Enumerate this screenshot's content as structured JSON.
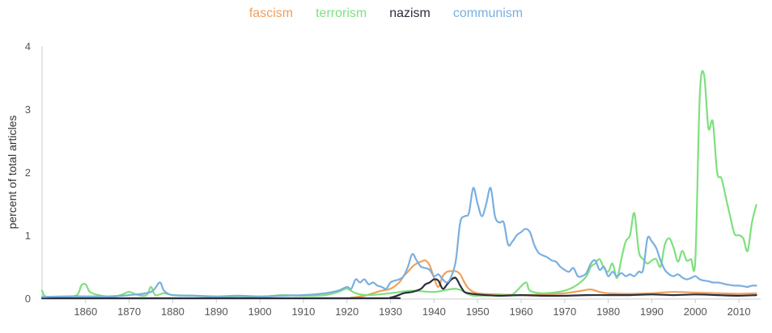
{
  "chart_data": {
    "type": "line",
    "title": "",
    "xlabel": "",
    "ylabel": "percent of total articles",
    "xlim": [
      1850,
      2015
    ],
    "ylim": [
      0,
      4
    ],
    "xticks": [
      1860,
      1870,
      1880,
      1890,
      1900,
      1910,
      1920,
      1930,
      1940,
      1950,
      1960,
      1970,
      1980,
      1990,
      2000,
      2010
    ],
    "yticks": [
      0,
      1,
      2,
      3,
      4
    ],
    "grid": false,
    "legend_position": "top-center",
    "series": [
      {
        "name": "fascism",
        "color": "#f0a05a",
        "points": [
          [
            1850,
            0
          ],
          [
            1918,
            0
          ],
          [
            1921,
            0.01
          ],
          [
            1924,
            0.04
          ],
          [
            1926,
            0.08
          ],
          [
            1928,
            0.12
          ],
          [
            1930,
            0.15
          ],
          [
            1932,
            0.25
          ],
          [
            1933,
            0.35
          ],
          [
            1934,
            0.42
          ],
          [
            1935,
            0.5
          ],
          [
            1936,
            0.55
          ],
          [
            1937,
            0.58
          ],
          [
            1938,
            0.6
          ],
          [
            1939,
            0.52
          ],
          [
            1940,
            0.32
          ],
          [
            1941,
            0.18
          ],
          [
            1942,
            0.35
          ],
          [
            1943,
            0.42
          ],
          [
            1944,
            0.43
          ],
          [
            1945,
            0.43
          ],
          [
            1946,
            0.38
          ],
          [
            1947,
            0.25
          ],
          [
            1948,
            0.15
          ],
          [
            1950,
            0.08
          ],
          [
            1955,
            0.06
          ],
          [
            1960,
            0.05
          ],
          [
            1965,
            0.06
          ],
          [
            1970,
            0.08
          ],
          [
            1974,
            0.12
          ],
          [
            1976,
            0.14
          ],
          [
            1978,
            0.1
          ],
          [
            1980,
            0.08
          ],
          [
            1985,
            0.07
          ],
          [
            1990,
            0.08
          ],
          [
            1995,
            0.1
          ],
          [
            2000,
            0.09
          ],
          [
            2005,
            0.08
          ],
          [
            2010,
            0.07
          ],
          [
            2014,
            0.08
          ]
        ]
      },
      {
        "name": "terrorism",
        "color": "#7ee07e",
        "points": [
          [
            1850,
            0.12
          ],
          [
            1851,
            0.02
          ],
          [
            1855,
            0.02
          ],
          [
            1858,
            0.05
          ],
          [
            1859,
            0.2
          ],
          [
            1860,
            0.22
          ],
          [
            1861,
            0.1
          ],
          [
            1863,
            0.05
          ],
          [
            1866,
            0.02
          ],
          [
            1868,
            0.05
          ],
          [
            1870,
            0.1
          ],
          [
            1872,
            0.05
          ],
          [
            1874,
            0.05
          ],
          [
            1875,
            0.18
          ],
          [
            1876,
            0.05
          ],
          [
            1878,
            0.08
          ],
          [
            1880,
            0.05
          ],
          [
            1885,
            0.04
          ],
          [
            1890,
            0.02
          ],
          [
            1895,
            0.03
          ],
          [
            1900,
            0.02
          ],
          [
            1905,
            0.05
          ],
          [
            1910,
            0.04
          ],
          [
            1915,
            0.05
          ],
          [
            1918,
            0.1
          ],
          [
            1920,
            0.15
          ],
          [
            1922,
            0.08
          ],
          [
            1925,
            0.05
          ],
          [
            1930,
            0.08
          ],
          [
            1935,
            0.12
          ],
          [
            1940,
            0.1
          ],
          [
            1945,
            0.15
          ],
          [
            1948,
            0.06
          ],
          [
            1950,
            0.04
          ],
          [
            1955,
            0.05
          ],
          [
            1958,
            0.06
          ],
          [
            1961,
            0.25
          ],
          [
            1962,
            0.12
          ],
          [
            1965,
            0.08
          ],
          [
            1970,
            0.12
          ],
          [
            1973,
            0.22
          ],
          [
            1975,
            0.35
          ],
          [
            1976,
            0.5
          ],
          [
            1977,
            0.55
          ],
          [
            1978,
            0.62
          ],
          [
            1979,
            0.48
          ],
          [
            1980,
            0.42
          ],
          [
            1981,
            0.55
          ],
          [
            1982,
            0.32
          ],
          [
            1983,
            0.62
          ],
          [
            1984,
            0.9
          ],
          [
            1985,
            1.0
          ],
          [
            1986,
            1.35
          ],
          [
            1987,
            0.75
          ],
          [
            1988,
            0.62
          ],
          [
            1989,
            0.55
          ],
          [
            1990,
            0.6
          ],
          [
            1991,
            0.62
          ],
          [
            1992,
            0.5
          ],
          [
            1993,
            0.85
          ],
          [
            1994,
            0.95
          ],
          [
            1995,
            0.8
          ],
          [
            1996,
            0.58
          ],
          [
            1997,
            0.75
          ],
          [
            1998,
            0.6
          ],
          [
            1999,
            0.62
          ],
          [
            2000,
            0.62
          ],
          [
            2001,
            3.2
          ],
          [
            2002,
            3.55
          ],
          [
            2003,
            2.7
          ],
          [
            2004,
            2.8
          ],
          [
            2005,
            2.0
          ],
          [
            2006,
            1.9
          ],
          [
            2007,
            1.6
          ],
          [
            2008,
            1.3
          ],
          [
            2009,
            1.02
          ],
          [
            2010,
            1.0
          ],
          [
            2011,
            0.95
          ],
          [
            2012,
            0.75
          ],
          [
            2013,
            1.2
          ],
          [
            2014,
            1.48
          ]
        ]
      },
      {
        "name": "nazism",
        "color": "#2a2e3a",
        "points": [
          [
            1850,
            0
          ],
          [
            1925,
            0
          ],
          [
            1930,
            0.01
          ],
          [
            1933,
            0.08
          ],
          [
            1935,
            0.1
          ],
          [
            1937,
            0.15
          ],
          [
            1938,
            0.22
          ],
          [
            1939,
            0.25
          ],
          [
            1940,
            0.3
          ],
          [
            1941,
            0.28
          ],
          [
            1942,
            0.15
          ],
          [
            1943,
            0.22
          ],
          [
            1944,
            0.3
          ],
          [
            1945,
            0.32
          ],
          [
            1946,
            0.2
          ],
          [
            1947,
            0.1
          ],
          [
            1948,
            0.08
          ],
          [
            1950,
            0.06
          ],
          [
            1955,
            0.04
          ],
          [
            1960,
            0.05
          ],
          [
            1965,
            0.04
          ],
          [
            1970,
            0.04
          ],
          [
            1975,
            0.05
          ],
          [
            1980,
            0.05
          ],
          [
            1985,
            0.05
          ],
          [
            1990,
            0.06
          ],
          [
            1995,
            0.05
          ],
          [
            2000,
            0.06
          ],
          [
            2005,
            0.05
          ],
          [
            2010,
            0.04
          ],
          [
            2014,
            0.05
          ]
        ]
      },
      {
        "name": "communism",
        "color": "#7aafe0",
        "points": [
          [
            1850,
            0.02
          ],
          [
            1855,
            0.03
          ],
          [
            1860,
            0.03
          ],
          [
            1865,
            0.03
          ],
          [
            1870,
            0.05
          ],
          [
            1875,
            0.1
          ],
          [
            1877,
            0.25
          ],
          [
            1878,
            0.12
          ],
          [
            1880,
            0.05
          ],
          [
            1885,
            0.04
          ],
          [
            1890,
            0.03
          ],
          [
            1895,
            0.04
          ],
          [
            1900,
            0.03
          ],
          [
            1905,
            0.04
          ],
          [
            1910,
            0.05
          ],
          [
            1915,
            0.08
          ],
          [
            1918,
            0.12
          ],
          [
            1920,
            0.18
          ],
          [
            1921,
            0.15
          ],
          [
            1922,
            0.3
          ],
          [
            1923,
            0.25
          ],
          [
            1924,
            0.3
          ],
          [
            1925,
            0.22
          ],
          [
            1926,
            0.25
          ],
          [
            1927,
            0.2
          ],
          [
            1928,
            0.18
          ],
          [
            1929,
            0.15
          ],
          [
            1930,
            0.25
          ],
          [
            1931,
            0.28
          ],
          [
            1932,
            0.3
          ],
          [
            1933,
            0.35
          ],
          [
            1934,
            0.5
          ],
          [
            1935,
            0.7
          ],
          [
            1936,
            0.6
          ],
          [
            1937,
            0.5
          ],
          [
            1938,
            0.48
          ],
          [
            1939,
            0.45
          ],
          [
            1940,
            0.35
          ],
          [
            1941,
            0.38
          ],
          [
            1942,
            0.3
          ],
          [
            1943,
            0.25
          ],
          [
            1944,
            0.35
          ],
          [
            1945,
            0.6
          ],
          [
            1946,
            1.2
          ],
          [
            1947,
            1.3
          ],
          [
            1948,
            1.35
          ],
          [
            1949,
            1.75
          ],
          [
            1950,
            1.5
          ],
          [
            1951,
            1.3
          ],
          [
            1952,
            1.5
          ],
          [
            1953,
            1.75
          ],
          [
            1954,
            1.3
          ],
          [
            1955,
            1.2
          ],
          [
            1956,
            1.2
          ],
          [
            1957,
            0.85
          ],
          [
            1958,
            0.9
          ],
          [
            1959,
            1.0
          ],
          [
            1960,
            1.05
          ],
          [
            1961,
            1.1
          ],
          [
            1962,
            1.05
          ],
          [
            1963,
            0.85
          ],
          [
            1964,
            0.72
          ],
          [
            1965,
            0.68
          ],
          [
            1966,
            0.65
          ],
          [
            1967,
            0.6
          ],
          [
            1968,
            0.58
          ],
          [
            1969,
            0.5
          ],
          [
            1970,
            0.45
          ],
          [
            1971,
            0.42
          ],
          [
            1972,
            0.48
          ],
          [
            1973,
            0.35
          ],
          [
            1974,
            0.35
          ],
          [
            1975,
            0.4
          ],
          [
            1976,
            0.55
          ],
          [
            1977,
            0.6
          ],
          [
            1978,
            0.45
          ],
          [
            1979,
            0.5
          ],
          [
            1980,
            0.35
          ],
          [
            1981,
            0.42
          ],
          [
            1982,
            0.35
          ],
          [
            1983,
            0.4
          ],
          [
            1984,
            0.35
          ],
          [
            1985,
            0.38
          ],
          [
            1986,
            0.35
          ],
          [
            1987,
            0.42
          ],
          [
            1988,
            0.45
          ],
          [
            1989,
            0.95
          ],
          [
            1990,
            0.9
          ],
          [
            1991,
            0.8
          ],
          [
            1992,
            0.6
          ],
          [
            1993,
            0.45
          ],
          [
            1994,
            0.38
          ],
          [
            1995,
            0.35
          ],
          [
            1996,
            0.38
          ],
          [
            1997,
            0.33
          ],
          [
            1998,
            0.3
          ],
          [
            1999,
            0.32
          ],
          [
            2000,
            0.35
          ],
          [
            2001,
            0.3
          ],
          [
            2002,
            0.28
          ],
          [
            2003,
            0.27
          ],
          [
            2004,
            0.25
          ],
          [
            2005,
            0.25
          ],
          [
            2006,
            0.24
          ],
          [
            2007,
            0.22
          ],
          [
            2008,
            0.21
          ],
          [
            2009,
            0.2
          ],
          [
            2010,
            0.2
          ],
          [
            2011,
            0.19
          ],
          [
            2012,
            0.18
          ],
          [
            2013,
            0.2
          ],
          [
            2014,
            0.2
          ]
        ]
      }
    ]
  }
}
